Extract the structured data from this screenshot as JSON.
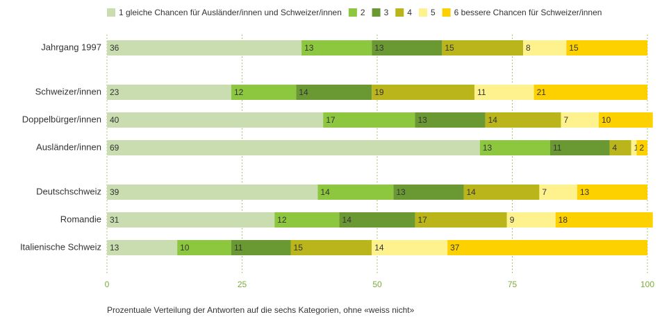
{
  "chart_data": {
    "type": "stacked_barh",
    "categories": [
      "Jahrgang 1997",
      "Schweizer/innen",
      "Doppelbürger/innen",
      "Ausländer/innen",
      "Deutschschweiz",
      "Romandie",
      "Italienische Schweiz"
    ],
    "series": [
      {
        "name": "1 gleiche Chancen für Ausländer/innen und Schweizer/innen",
        "color": "#c9ddb1",
        "values": [
          36,
          23,
          40,
          69,
          39,
          31,
          13
        ]
      },
      {
        "name": "2",
        "color": "#8dc63f",
        "values": [
          13,
          12,
          17,
          13,
          14,
          12,
          10
        ]
      },
      {
        "name": "3",
        "color": "#6a9934",
        "values": [
          13,
          14,
          13,
          11,
          13,
          14,
          11
        ]
      },
      {
        "name": "4",
        "color": "#b9b51b",
        "values": [
          15,
          19,
          14,
          4,
          14,
          17,
          15
        ]
      },
      {
        "name": "5",
        "color": "#fdf28e",
        "values": [
          8,
          11,
          7,
          1,
          7,
          9,
          14
        ]
      },
      {
        "name": "6 bessere Chancen für Schweizer/innen",
        "color": "#fdd100",
        "values": [
          15,
          21,
          10,
          2,
          13,
          18,
          37
        ]
      }
    ],
    "xlim": [
      0,
      100
    ],
    "xticks": [
      0,
      25,
      50,
      75,
      100
    ],
    "grid": true,
    "note": "Prozentuale Verteilung der Antworten auf die sechs Kategorien, ohne «weiss nicht»"
  }
}
